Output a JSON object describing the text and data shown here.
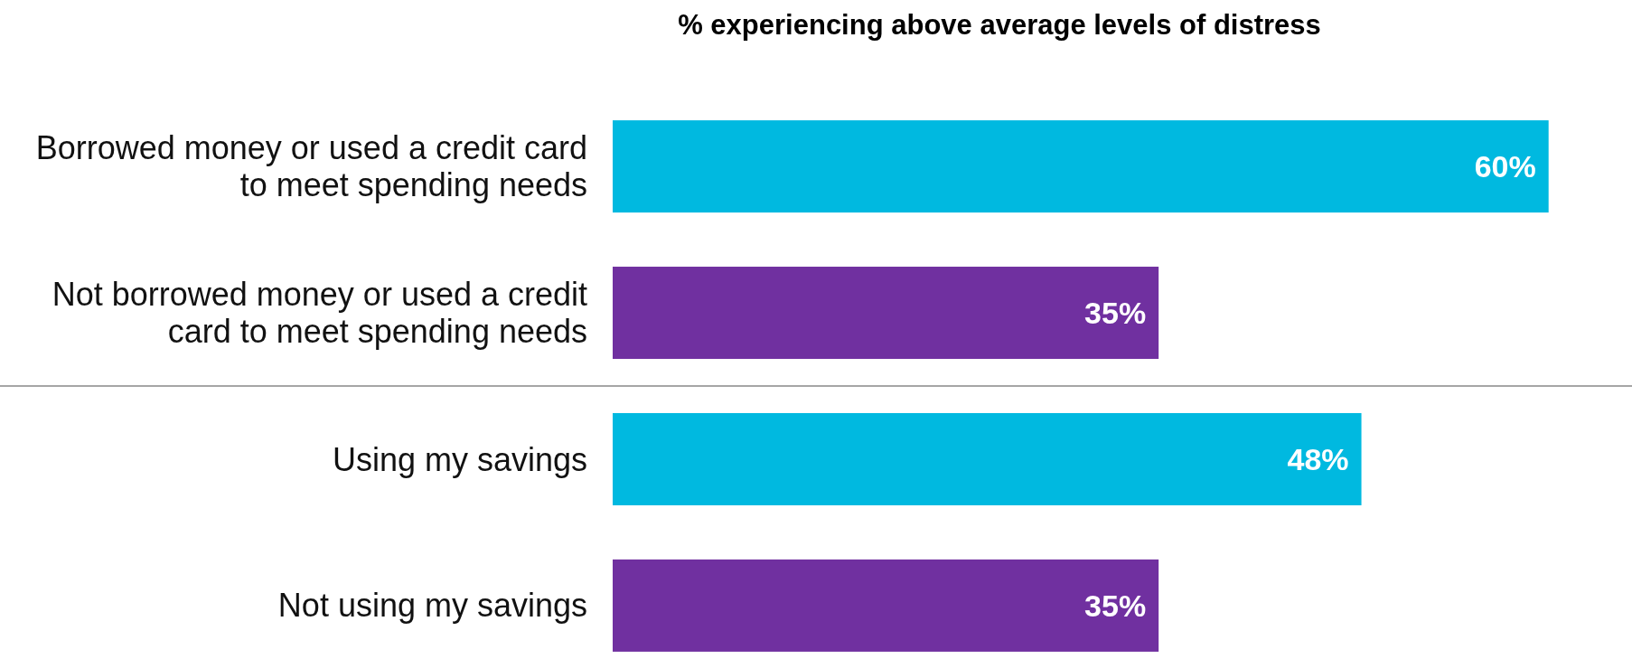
{
  "chart_data": {
    "type": "bar",
    "orientation": "horizontal",
    "title": "% experiencing above average levels of distress",
    "categories": [
      "Borrowed money or used a credit card to meet spending needs",
      "Not borrowed money or used a credit card to meet spending needs",
      "Using my savings",
      "Not using my savings"
    ],
    "values": [
      60,
      35,
      48,
      35
    ],
    "colors": [
      "#00b9e0",
      "#7030a0",
      "#00b9e0",
      "#7030a0"
    ],
    "value_labels": [
      "60%",
      "35%",
      "48%",
      "35%"
    ],
    "xlim": [
      0,
      65
    ],
    "tick_labels": "y",
    "grid": false
  }
}
